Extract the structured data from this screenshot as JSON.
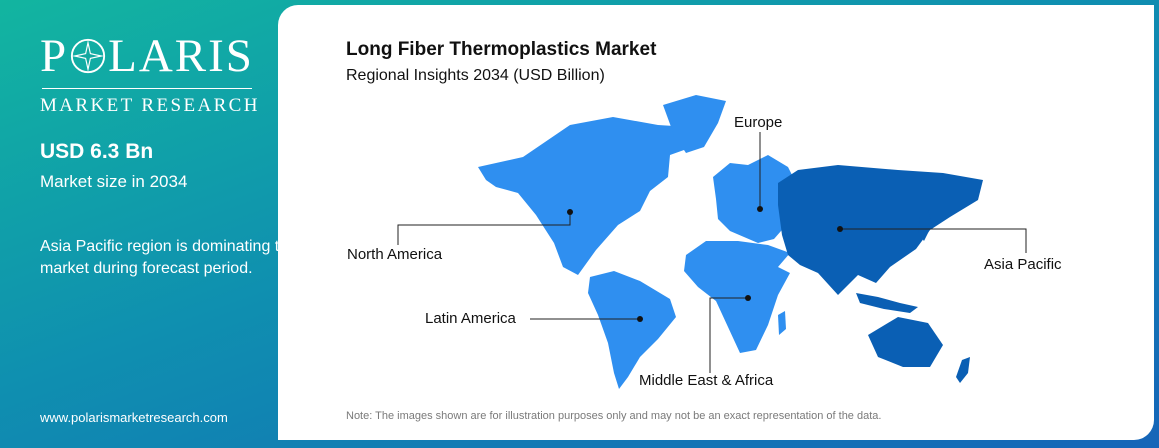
{
  "brand": {
    "name_parts": [
      "P",
      "LARIS"
    ],
    "subtitle": "MARKET RESEARCH"
  },
  "stat": {
    "value": "USD 6.3 Bn",
    "label": "Market size in 2034"
  },
  "insight": "Asia Pacific region is dominating the market during forecast period.",
  "website": "www.polarismarketresearch.com",
  "card": {
    "title": "Long Fiber Thermoplastics Market",
    "subtitle": "Regional Insights 2034 (USD Billion)",
    "note": "Note: The images shown are for illustration purposes only and may not be an exact representation of the data."
  },
  "regions": {
    "north_america": "North America",
    "europe": "Europe",
    "asia_pacific": "Asia Pacific",
    "latin_america": "Latin America",
    "middle_east_africa": "Middle East & Africa"
  },
  "colors": {
    "light_region": "#2f8ff0",
    "dominant_region": "#0a5fb4",
    "accent_teal": "#12b5a0",
    "accent_blue": "#1565b8"
  },
  "icons": {
    "logo_star": "compass-star-icon"
  }
}
